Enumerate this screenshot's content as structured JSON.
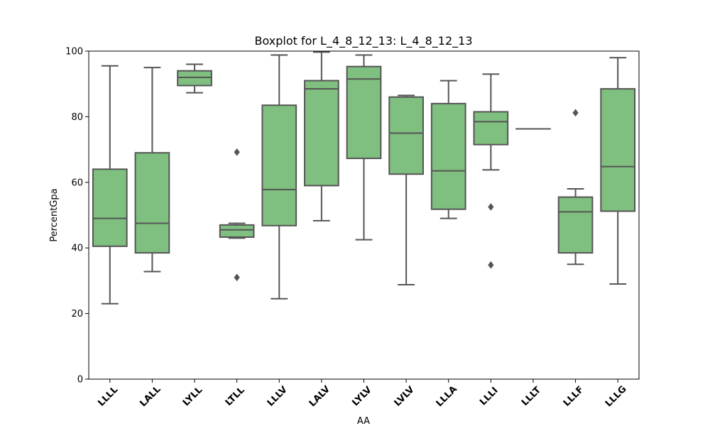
{
  "chart_data": {
    "type": "box",
    "title": "Boxplot for L_4_8_12_13: L_4_8_12_13",
    "xlabel": "AA",
    "ylabel": "PercentGpa",
    "ylim": [
      0,
      100
    ],
    "yticks": [
      0,
      20,
      40,
      60,
      80,
      100
    ],
    "grid": false,
    "box_color": "#7fbf7f",
    "edge_color": "#555555",
    "categories": [
      "LLLL",
      "LALL",
      "LYLL",
      "LTLL",
      "LLLV",
      "LALV",
      "LYLV",
      "LVLV",
      "LLLA",
      "LLLI",
      "LLLT",
      "LLLF",
      "LLLG"
    ],
    "boxes": [
      {
        "min": 23,
        "q1": 40.5,
        "median": 49,
        "q3": 64,
        "max": 95.5,
        "outliers": []
      },
      {
        "min": 32.8,
        "q1": 38.5,
        "median": 47.5,
        "q3": 69,
        "max": 95,
        "outliers": []
      },
      {
        "min": 87.3,
        "q1": 89.5,
        "median": 92,
        "q3": 94,
        "max": 96,
        "outliers": []
      },
      {
        "min": 43,
        "q1": 43.3,
        "median": 45.5,
        "q3": 47,
        "max": 47.5,
        "outliers": [
          69.2,
          31
        ]
      },
      {
        "min": 24.5,
        "q1": 46.8,
        "median": 57.8,
        "q3": 83.5,
        "max": 98.8,
        "outliers": []
      },
      {
        "min": 48.3,
        "q1": 59,
        "median": 88.5,
        "q3": 91,
        "max": 99.7,
        "outliers": []
      },
      {
        "min": 42.5,
        "q1": 67.3,
        "median": 91.5,
        "q3": 95.3,
        "max": 98.8,
        "outliers": []
      },
      {
        "min": 28.8,
        "q1": 62.5,
        "median": 75,
        "q3": 86,
        "max": 86.5,
        "outliers": []
      },
      {
        "min": 49,
        "q1": 51.8,
        "median": 63.5,
        "q3": 84,
        "max": 91,
        "outliers": []
      },
      {
        "min": 63.8,
        "q1": 71.5,
        "median": 78.5,
        "q3": 81.5,
        "max": 93,
        "outliers": [
          52.5,
          34.8
        ]
      },
      {
        "min": 76.3,
        "q1": 76.3,
        "median": 76.3,
        "q3": 76.3,
        "max": 76.3,
        "outliers": []
      },
      {
        "min": 35,
        "q1": 38.5,
        "median": 51,
        "q3": 55.5,
        "max": 58,
        "outliers": [
          81.2
        ]
      },
      {
        "min": 29,
        "q1": 51.2,
        "median": 64.8,
        "q3": 88.5,
        "max": 98,
        "outliers": []
      }
    ]
  }
}
